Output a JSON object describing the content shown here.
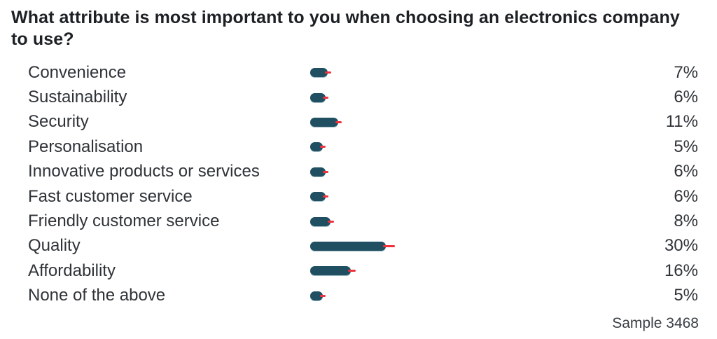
{
  "title": "What attribute is most important to you when choosing an electronics company to use?",
  "sample_label": "Sample 3468",
  "colors": {
    "bar": "#1f4f61",
    "error_tick": "#ef333e",
    "title_text": "#1d2125",
    "label_text": "#2f3338"
  },
  "chart_data": {
    "type": "bar",
    "orientation": "horizontal",
    "title": "What attribute is most important to you when choosing an electronics company to use?",
    "xlabel": "",
    "ylabel": "",
    "grid": false,
    "legend": false,
    "annotation": "Sample 3468",
    "categories": [
      "Convenience",
      "Sustainability",
      "Security",
      "Personalisation",
      "Innovative products or services",
      "Fast customer service",
      "Friendly customer service",
      "Quality",
      "Affordability",
      "None of the above"
    ],
    "values": [
      7,
      6,
      11,
      5,
      6,
      6,
      8,
      30,
      16,
      5
    ],
    "value_labels": [
      "7%",
      "6%",
      "11%",
      "5%",
      "6%",
      "6%",
      "8%",
      "30%",
      "16%",
      "5%"
    ],
    "unit": "%",
    "has_error_ticks": true
  }
}
